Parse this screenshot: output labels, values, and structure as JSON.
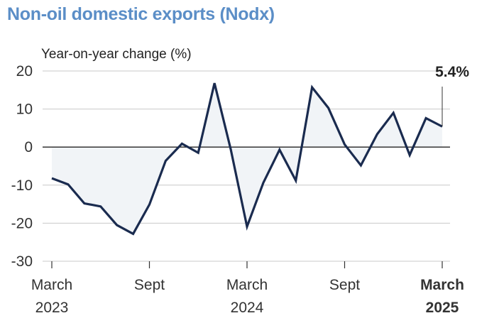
{
  "chart_data": {
    "type": "area",
    "title": "Non-oil domestic exports (Nodx)",
    "ylabel": "Year-on-year change (%)",
    "xlabel": "",
    "ylim": [
      -30,
      20
    ],
    "y_ticks": [
      20,
      10,
      0,
      -10,
      -20,
      -30
    ],
    "y_tick_labels": [
      "20",
      "10",
      "0",
      "-10",
      "-20",
      "-30"
    ],
    "grid": true,
    "x": [
      "Mar 2023",
      "Apr 2023",
      "May 2023",
      "Jun 2023",
      "Jul 2023",
      "Aug 2023",
      "Sep 2023",
      "Oct 2023",
      "Nov 2023",
      "Dec 2023",
      "Jan 2024",
      "Feb 2024",
      "Mar 2024",
      "Apr 2024",
      "May 2024",
      "Jun 2024",
      "Jul 2024",
      "Aug 2024",
      "Sep 2024",
      "Oct 2024",
      "Nov 2024",
      "Dec 2024",
      "Jan 2025",
      "Feb 2025",
      "Mar 2025"
    ],
    "series": [
      {
        "values": [
          -8.2,
          -9.8,
          -14.8,
          -15.6,
          -20.5,
          -22.8,
          -15.1,
          -3.6,
          0.9,
          -1.5,
          16.8,
          -0.6,
          -20.9,
          -9.4,
          -0.7,
          -8.8,
          15.7,
          10.3,
          0.7,
          -4.8,
          3.4,
          9.0,
          -2.1,
          7.6,
          5.4
        ],
        "color": "#1a2b4f",
        "fill_color": "#f1f4f7"
      }
    ],
    "x_tick_labels": [
      {
        "index": 0,
        "line1": "March",
        "line2": "2023",
        "bold": false
      },
      {
        "index": 6,
        "line1": "Sept",
        "line2": "",
        "bold": false
      },
      {
        "index": 12,
        "line1": "March",
        "line2": "2024",
        "bold": false
      },
      {
        "index": 18,
        "line1": "Sept",
        "line2": "",
        "bold": false
      },
      {
        "index": 24,
        "line1": "March",
        "line2": "2025",
        "bold": true
      }
    ],
    "annotation": {
      "index": 24,
      "label": "5.4%"
    },
    "colors": {
      "title": "#5b8ec7",
      "grid": "#c8c8c8",
      "zero_line": "#222222",
      "line": "#1a2b4f",
      "area": "#f1f4f7"
    }
  }
}
